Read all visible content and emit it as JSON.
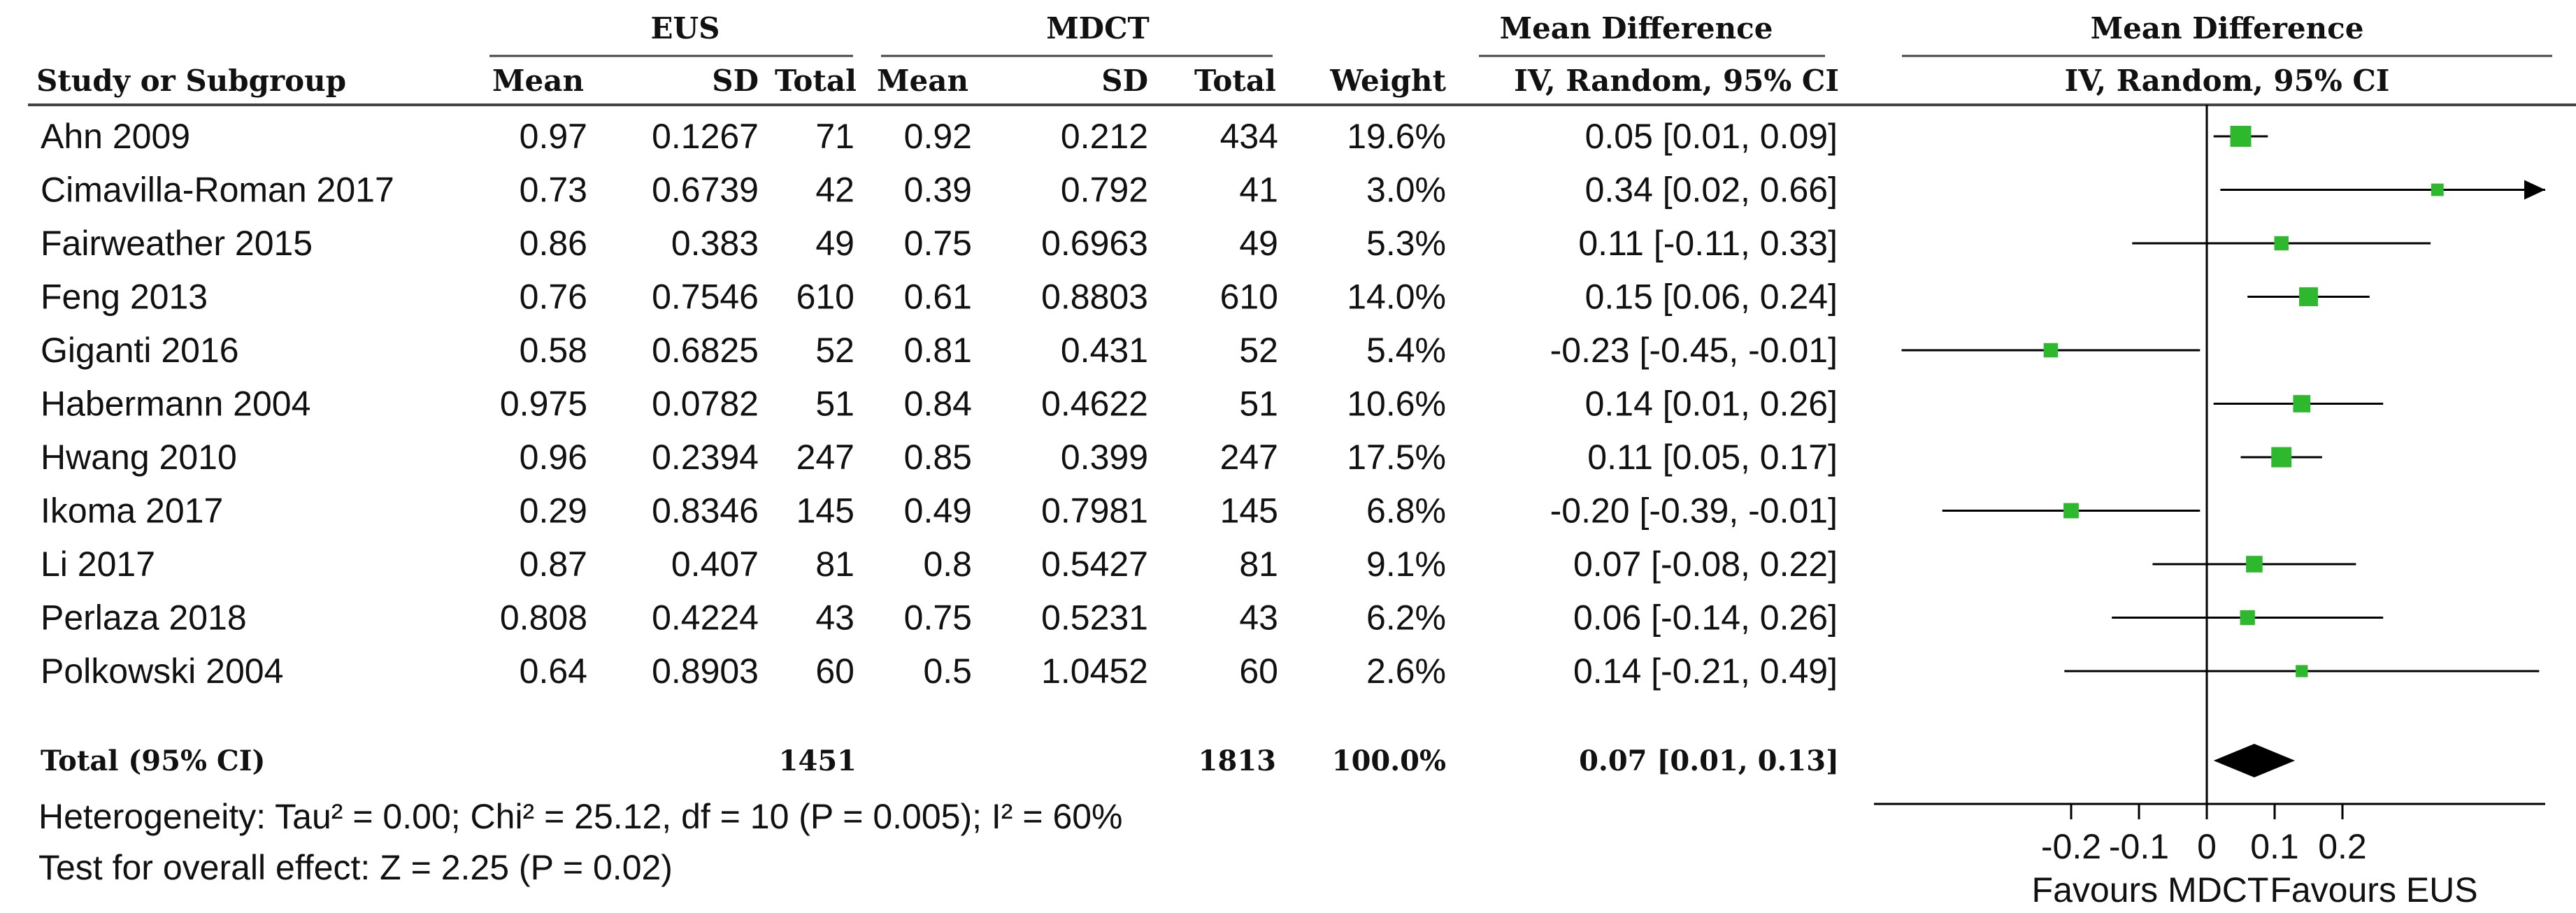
{
  "header": {
    "eus": "EUS",
    "mdct": "MDCT",
    "md_title": "Mean Difference",
    "md_method": "IV, Random, 95% CI",
    "plot_title": "Mean Difference",
    "plot_method": "IV, Random, 95% CI",
    "study": "Study or Subgroup",
    "mean1": "Mean",
    "sd1": "SD",
    "total1": "Total",
    "mean2": "Mean",
    "sd2": "SD",
    "total2": "Total",
    "weight": "Weight"
  },
  "rows": [
    {
      "study": "Ahn 2009",
      "mean1": "0.97",
      "sd1": "0.1267",
      "total1": "71",
      "mean2": "0.92",
      "sd2": "0.212",
      "total2": "434",
      "weight": "19.6%",
      "ci": "0.05 [0.01, 0.09]"
    },
    {
      "study": "Cimavilla-Roman 2017",
      "mean1": "0.73",
      "sd1": "0.6739",
      "total1": "42",
      "mean2": "0.39",
      "sd2": "0.792",
      "total2": "41",
      "weight": "3.0%",
      "ci": "0.34 [0.02, 0.66]"
    },
    {
      "study": "Fairweather 2015",
      "mean1": "0.86",
      "sd1": "0.383",
      "total1": "49",
      "mean2": "0.75",
      "sd2": "0.6963",
      "total2": "49",
      "weight": "5.3%",
      "ci": "0.11 [-0.11, 0.33]"
    },
    {
      "study": "Feng 2013",
      "mean1": "0.76",
      "sd1": "0.7546",
      "total1": "610",
      "mean2": "0.61",
      "sd2": "0.8803",
      "total2": "610",
      "weight": "14.0%",
      "ci": "0.15 [0.06, 0.24]"
    },
    {
      "study": "Giganti 2016",
      "mean1": "0.58",
      "sd1": "0.6825",
      "total1": "52",
      "mean2": "0.81",
      "sd2": "0.431",
      "total2": "52",
      "weight": "5.4%",
      "ci": "-0.23 [-0.45, -0.01]"
    },
    {
      "study": "Habermann 2004",
      "mean1": "0.975",
      "sd1": "0.0782",
      "total1": "51",
      "mean2": "0.84",
      "sd2": "0.4622",
      "total2": "51",
      "weight": "10.6%",
      "ci": "0.14 [0.01, 0.26]"
    },
    {
      "study": "Hwang 2010",
      "mean1": "0.96",
      "sd1": "0.2394",
      "total1": "247",
      "mean2": "0.85",
      "sd2": "0.399",
      "total2": "247",
      "weight": "17.5%",
      "ci": "0.11 [0.05, 0.17]"
    },
    {
      "study": "Ikoma 2017",
      "mean1": "0.29",
      "sd1": "0.8346",
      "total1": "145",
      "mean2": "0.49",
      "sd2": "0.7981",
      "total2": "145",
      "weight": "6.8%",
      "ci": "-0.20 [-0.39, -0.01]"
    },
    {
      "study": "Li 2017",
      "mean1": "0.87",
      "sd1": "0.407",
      "total1": "81",
      "mean2": "0.8",
      "sd2": "0.5427",
      "total2": "81",
      "weight": "9.1%",
      "ci": "0.07 [-0.08, 0.22]"
    },
    {
      "study": "Perlaza 2018",
      "mean1": "0.808",
      "sd1": "0.4224",
      "total1": "43",
      "mean2": "0.75",
      "sd2": "0.5231",
      "total2": "43",
      "weight": "6.2%",
      "ci": "0.06 [-0.14, 0.26]"
    },
    {
      "study": "Polkowski 2004",
      "mean1": "0.64",
      "sd1": "0.8903",
      "total1": "60",
      "mean2": "0.5",
      "sd2": "1.0452",
      "total2": "60",
      "weight": "2.6%",
      "ci": "0.14 [-0.21, 0.49]"
    }
  ],
  "total": {
    "label": "Total (95% CI)",
    "total1": "1451",
    "total2": "1813",
    "weight": "100.0%",
    "ci": "0.07 [0.01, 0.13]"
  },
  "heterogeneity": "Heterogeneity: Tau² = 0.00; Chi² = 25.12, df = 10 (P = 0.005); I² = 60%",
  "overall_effect": "Test for overall effect: Z = 2.25 (P = 0.02)",
  "favours_left": "Favours MDCT",
  "favours_right": "Favours EUS",
  "colors": {
    "marker": "#2db82d",
    "line": "#000000",
    "diamond": "#000000"
  },
  "chart_data": {
    "type": "forest",
    "axis": {
      "min": -0.45,
      "max": 0.53,
      "ticks": [
        -0.2,
        -0.1,
        0,
        0.1,
        0.2
      ],
      "tick_labels": [
        "-0.2",
        "-0.1",
        "0",
        "0.1",
        "0.2"
      ]
    },
    "studies": [
      {
        "name": "Ahn 2009",
        "md": 0.05,
        "lower": 0.01,
        "upper": 0.09,
        "weight": 19.6
      },
      {
        "name": "Cimavilla-Roman 2017",
        "md": 0.34,
        "lower": 0.02,
        "upper": 0.66,
        "weight": 3.0
      },
      {
        "name": "Fairweather 2015",
        "md": 0.11,
        "lower": -0.11,
        "upper": 0.33,
        "weight": 5.3
      },
      {
        "name": "Feng 2013",
        "md": 0.15,
        "lower": 0.06,
        "upper": 0.24,
        "weight": 14.0
      },
      {
        "name": "Giganti 2016",
        "md": -0.23,
        "lower": -0.45,
        "upper": -0.01,
        "weight": 5.4
      },
      {
        "name": "Habermann 2004",
        "md": 0.14,
        "lower": 0.01,
        "upper": 0.26,
        "weight": 10.6
      },
      {
        "name": "Hwang 2010",
        "md": 0.11,
        "lower": 0.05,
        "upper": 0.17,
        "weight": 17.5
      },
      {
        "name": "Ikoma 2017",
        "md": -0.2,
        "lower": -0.39,
        "upper": -0.01,
        "weight": 6.8
      },
      {
        "name": "Li 2017",
        "md": 0.07,
        "lower": -0.08,
        "upper": 0.22,
        "weight": 9.1
      },
      {
        "name": "Perlaza 2018",
        "md": 0.06,
        "lower": -0.14,
        "upper": 0.26,
        "weight": 6.2
      },
      {
        "name": "Polkowski 2004",
        "md": 0.14,
        "lower": -0.21,
        "upper": 0.49,
        "weight": 2.6
      }
    ],
    "pooled": {
      "md": 0.07,
      "lower": 0.01,
      "upper": 0.13
    }
  }
}
